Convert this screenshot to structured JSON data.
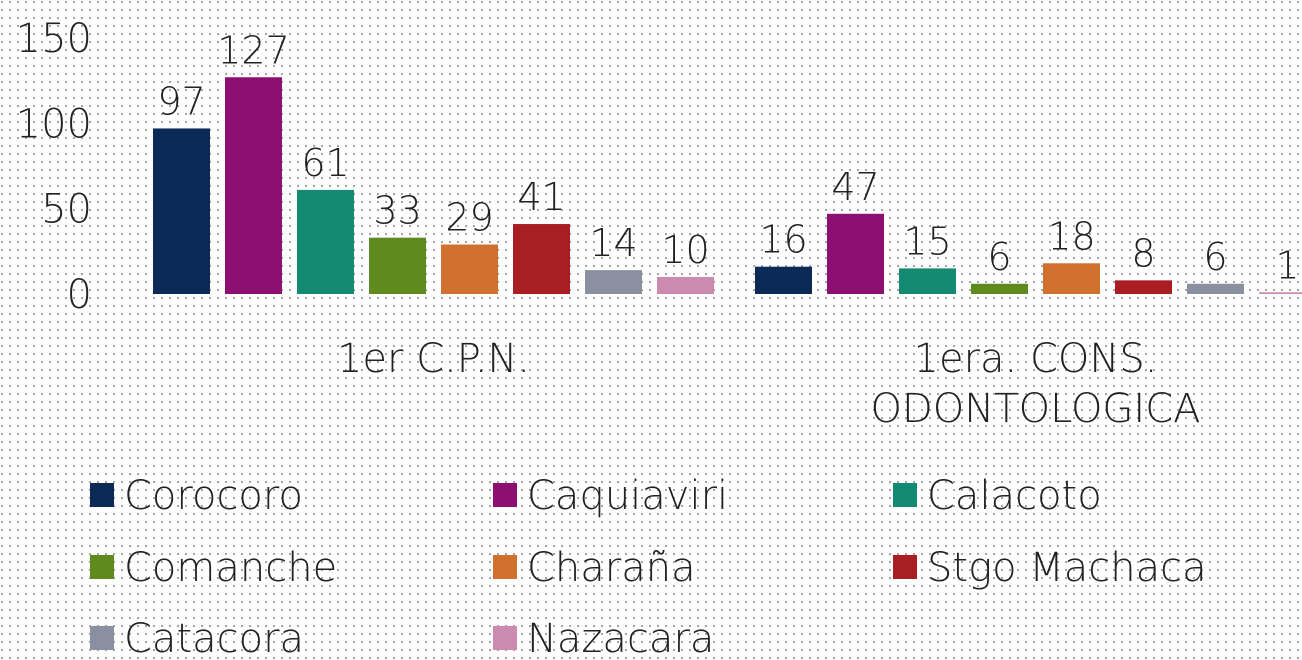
{
  "chart_data": {
    "type": "bar",
    "categories": [
      "1er C.P.N.",
      "1era. CONS. ODONTOLOGICA"
    ],
    "series": [
      {
        "name": "Corocoro",
        "color": "#0b2a55",
        "values": [
          97,
          16
        ]
      },
      {
        "name": "Caquiaviri",
        "color": "#8e0f72",
        "values": [
          127,
          47
        ]
      },
      {
        "name": "Calacoto",
        "color": "#148a72",
        "values": [
          61,
          15
        ]
      },
      {
        "name": "Comanche",
        "color": "#5e8a1e",
        "values": [
          33,
          6
        ]
      },
      {
        "name": "Charaña",
        "color": "#d0712f",
        "values": [
          29,
          18
        ]
      },
      {
        "name": "Stgo Machaca",
        "color": "#a81e22",
        "values": [
          41,
          8
        ]
      },
      {
        "name": "Catacora",
        "color": "#8a90a0",
        "values": [
          14,
          6
        ]
      },
      {
        "name": "Nazacara",
        "color": "#cc8ab0",
        "values": [
          10,
          1
        ]
      }
    ],
    "ylim": [
      0,
      150
    ],
    "yticks": [
      0,
      50,
      100,
      150
    ],
    "grid": false,
    "legend": "bottom"
  }
}
